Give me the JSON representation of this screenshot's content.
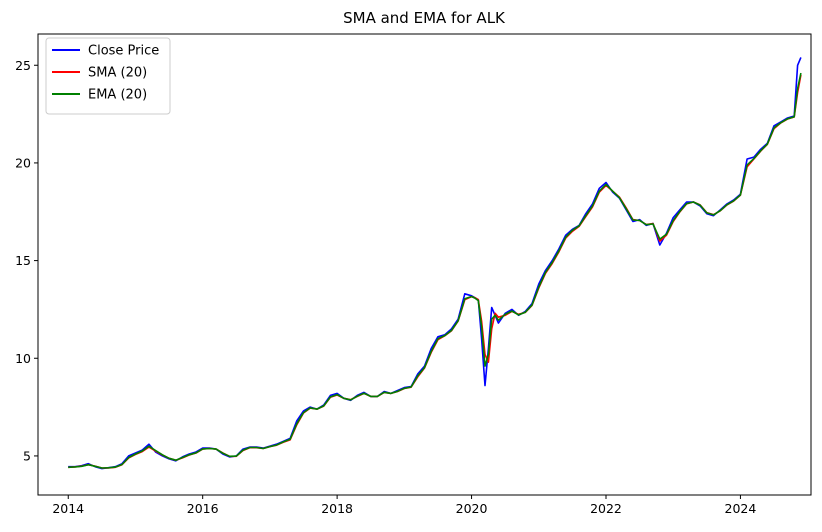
{
  "chart_data": {
    "type": "line",
    "title": "SMA and EMA for ALK",
    "xlabel": "",
    "ylabel": "",
    "xlim": [
      2013.55,
      2025.05
    ],
    "ylim": [
      3.0,
      26.6
    ],
    "x_ticks": [
      2014,
      2016,
      2018,
      2020,
      2022,
      2024
    ],
    "x_tick_labels": [
      "2014",
      "2016",
      "2018",
      "2020",
      "2022",
      "2024"
    ],
    "y_ticks": [
      5,
      10,
      15,
      20,
      25
    ],
    "y_tick_labels": [
      "5",
      "10",
      "15",
      "20",
      "25"
    ],
    "grid": false,
    "legend_position": "top-left",
    "x": [
      2014.0,
      2014.1,
      2014.2,
      2014.3,
      2014.4,
      2014.5,
      2014.6,
      2014.7,
      2014.8,
      2014.9,
      2015.0,
      2015.1,
      2015.2,
      2015.3,
      2015.4,
      2015.5,
      2015.6,
      2015.7,
      2015.8,
      2015.9,
      2016.0,
      2016.1,
      2016.2,
      2016.3,
      2016.4,
      2016.5,
      2016.6,
      2016.7,
      2016.8,
      2016.9,
      2017.0,
      2017.1,
      2017.2,
      2017.3,
      2017.4,
      2017.5,
      2017.6,
      2017.7,
      2017.8,
      2017.9,
      2018.0,
      2018.1,
      2018.2,
      2018.3,
      2018.4,
      2018.5,
      2018.6,
      2018.7,
      2018.8,
      2018.9,
      2019.0,
      2019.1,
      2019.2,
      2019.3,
      2019.4,
      2019.5,
      2019.6,
      2019.7,
      2019.8,
      2019.9,
      2020.0,
      2020.05,
      2020.1,
      2020.15,
      2020.2,
      2020.25,
      2020.3,
      2020.35,
      2020.4,
      2020.5,
      2020.6,
      2020.7,
      2020.8,
      2020.9,
      2021.0,
      2021.1,
      2021.2,
      2021.3,
      2021.4,
      2021.5,
      2021.6,
      2021.7,
      2021.8,
      2021.9,
      2022.0,
      2022.1,
      2022.2,
      2022.3,
      2022.4,
      2022.5,
      2022.6,
      2022.7,
      2022.8,
      2022.9,
      2023.0,
      2023.1,
      2023.2,
      2023.3,
      2023.4,
      2023.5,
      2023.6,
      2023.7,
      2023.8,
      2023.9,
      2024.0,
      2024.1,
      2024.2,
      2024.3,
      2024.4,
      2024.5,
      2024.6,
      2024.7,
      2024.8,
      2024.85,
      2024.9
    ],
    "series": [
      {
        "name": "Close Price",
        "color": "#0000ff",
        "values": [
          4.45,
          4.45,
          4.5,
          4.6,
          4.45,
          4.35,
          4.4,
          4.45,
          4.6,
          5.0,
          5.15,
          5.3,
          5.6,
          5.2,
          5.0,
          4.85,
          4.75,
          4.95,
          5.1,
          5.2,
          5.4,
          5.4,
          5.35,
          5.1,
          4.95,
          5.0,
          5.35,
          5.45,
          5.45,
          5.4,
          5.5,
          5.6,
          5.75,
          5.9,
          6.8,
          7.3,
          7.5,
          7.4,
          7.6,
          8.1,
          8.2,
          7.95,
          7.85,
          8.1,
          8.25,
          8.05,
          8.05,
          8.3,
          8.2,
          8.35,
          8.5,
          8.55,
          9.2,
          9.6,
          10.5,
          11.1,
          11.2,
          11.5,
          12.0,
          13.3,
          13.2,
          13.1,
          13.0,
          11.0,
          8.6,
          10.5,
          12.6,
          12.2,
          11.8,
          12.3,
          12.5,
          12.2,
          12.4,
          12.8,
          13.8,
          14.5,
          15.0,
          15.6,
          16.3,
          16.6,
          16.8,
          17.4,
          17.9,
          18.7,
          19.0,
          18.5,
          18.2,
          17.6,
          17.0,
          17.1,
          16.8,
          16.9,
          15.8,
          16.4,
          17.2,
          17.6,
          18.0,
          18.0,
          17.8,
          17.4,
          17.3,
          17.6,
          17.9,
          18.1,
          18.4,
          20.2,
          20.3,
          20.7,
          21.0,
          21.9,
          22.1,
          22.3,
          22.4,
          25.0,
          25.4
        ]
      },
      {
        "name": "SMA (20)",
        "color": "#ff0000",
        "values": [
          4.42,
          4.44,
          4.48,
          4.55,
          4.48,
          4.38,
          4.38,
          4.42,
          4.55,
          4.9,
          5.08,
          5.22,
          5.45,
          5.25,
          5.05,
          4.88,
          4.78,
          4.9,
          5.05,
          5.15,
          5.35,
          5.38,
          5.35,
          5.15,
          4.98,
          4.98,
          5.28,
          5.42,
          5.42,
          5.38,
          5.48,
          5.55,
          5.7,
          5.82,
          6.6,
          7.2,
          7.45,
          7.4,
          7.55,
          8.0,
          8.12,
          7.95,
          7.88,
          8.05,
          8.2,
          8.05,
          8.05,
          8.25,
          8.2,
          8.3,
          8.45,
          8.52,
          9.05,
          9.5,
          10.3,
          10.95,
          11.15,
          11.4,
          11.9,
          13.0,
          13.15,
          13.1,
          13.0,
          11.9,
          10.2,
          9.8,
          11.5,
          12.3,
          12.1,
          12.2,
          12.4,
          12.25,
          12.35,
          12.7,
          13.6,
          14.35,
          14.85,
          15.45,
          16.15,
          16.5,
          16.75,
          17.25,
          17.75,
          18.5,
          18.85,
          18.55,
          18.25,
          17.7,
          17.1,
          17.05,
          16.85,
          16.9,
          16.0,
          16.3,
          17.0,
          17.5,
          17.9,
          18.0,
          17.85,
          17.45,
          17.35,
          17.55,
          17.85,
          18.05,
          18.35,
          19.8,
          20.2,
          20.6,
          20.95,
          21.75,
          22.05,
          22.25,
          22.35,
          23.6,
          24.5
        ]
      },
      {
        "name": "EMA (20)",
        "color": "#008000",
        "values": [
          4.42,
          4.44,
          4.47,
          4.55,
          4.47,
          4.38,
          4.39,
          4.43,
          4.56,
          4.92,
          5.1,
          5.25,
          5.5,
          5.28,
          5.06,
          4.88,
          4.78,
          4.92,
          5.06,
          5.16,
          5.36,
          5.38,
          5.35,
          5.14,
          4.98,
          4.99,
          5.3,
          5.43,
          5.43,
          5.38,
          5.48,
          5.56,
          5.72,
          5.85,
          6.65,
          7.22,
          7.46,
          7.4,
          7.56,
          8.02,
          8.14,
          7.95,
          7.87,
          8.06,
          8.21,
          8.05,
          8.05,
          8.26,
          8.2,
          8.31,
          8.46,
          8.53,
          9.1,
          9.52,
          10.35,
          11.0,
          11.16,
          11.42,
          11.92,
          13.05,
          13.16,
          13.08,
          12.95,
          11.6,
          9.6,
          10.2,
          12.0,
          12.2,
          11.95,
          12.25,
          12.42,
          12.22,
          12.36,
          12.72,
          13.65,
          14.4,
          14.9,
          15.5,
          16.2,
          16.55,
          16.78,
          17.3,
          17.8,
          18.55,
          18.9,
          18.55,
          18.22,
          17.65,
          17.08,
          17.06,
          16.84,
          16.88,
          16.1,
          16.35,
          17.05,
          17.52,
          17.92,
          18.0,
          17.84,
          17.44,
          17.34,
          17.56,
          17.86,
          18.06,
          18.36,
          19.9,
          20.22,
          20.62,
          20.96,
          21.8,
          22.06,
          22.26,
          22.36,
          23.8,
          24.6
        ]
      }
    ]
  }
}
